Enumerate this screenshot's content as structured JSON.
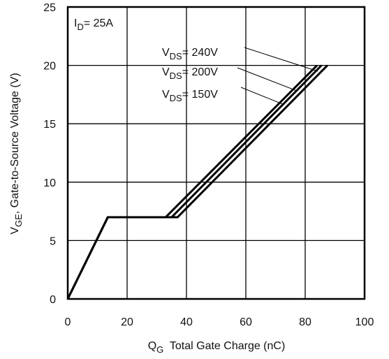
{
  "chart_data": {
    "type": "line",
    "annotation": [
      "I",
      "D",
      "= 25A"
    ],
    "xlabel": [
      "Q",
      "G",
      "  Total Gate Charge (nC)"
    ],
    "ylabel": [
      "V",
      "GE",
      ", Gate-to-Source Voltage (V)"
    ],
    "xlim": [
      0,
      100
    ],
    "xticks": [
      0,
      20,
      40,
      60,
      80,
      100
    ],
    "ylim": [
      0,
      25
    ],
    "yticks": [
      0,
      5,
      10,
      15,
      20,
      25
    ],
    "grid": true,
    "series": [
      {
        "name": [
          "V",
          "DS",
          "= 240V"
        ],
        "color": "#000000",
        "x": [
          0,
          13.5,
          33,
          84
        ],
        "values": [
          0,
          7,
          7,
          20
        ]
      },
      {
        "name": [
          "V",
          "DS",
          "= 200V"
        ],
        "color": "#000000",
        "x": [
          0,
          13.5,
          35,
          85.5
        ],
        "values": [
          0,
          7,
          7,
          20
        ]
      },
      {
        "name": [
          "V",
          "DS",
          "= 150V"
        ],
        "color": "#000000",
        "x": [
          0,
          13.5,
          37,
          87.5
        ],
        "values": [
          0,
          7,
          7,
          20
        ]
      }
    ]
  }
}
